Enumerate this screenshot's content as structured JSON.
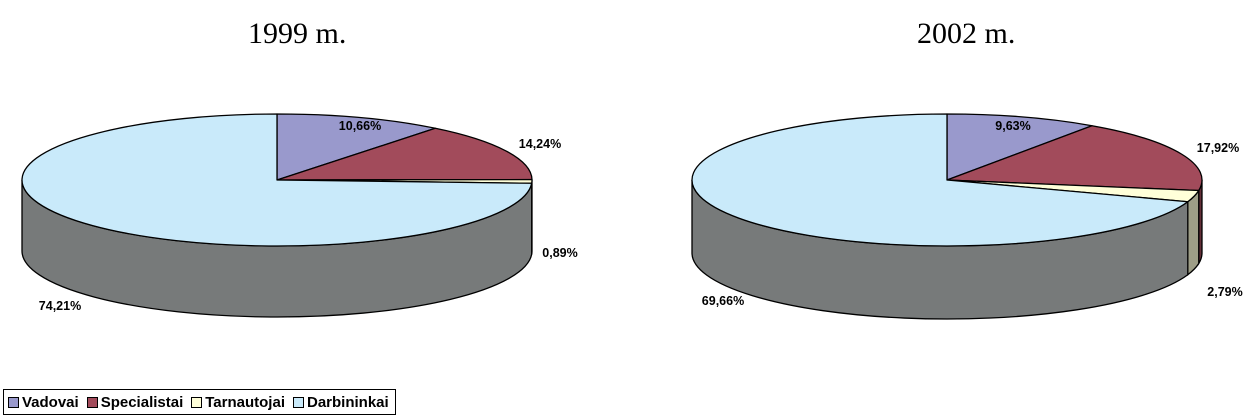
{
  "chart_data": [
    {
      "type": "pie",
      "title": "1999 m.",
      "categories": [
        "Vadovai",
        "Specialistai",
        "Tarnautojai",
        "Darbininkai"
      ],
      "values": [
        10.66,
        14.24,
        0.89,
        74.21
      ],
      "labels": [
        "10,66%",
        "14,24%",
        "0,89%",
        "74,21%"
      ]
    },
    {
      "type": "pie",
      "title": "2002 m.",
      "categories": [
        "Vadovai",
        "Specialistai",
        "Tarnautojai",
        "Darbininkai"
      ],
      "values": [
        9.63,
        17.92,
        2.79,
        69.66
      ],
      "labels": [
        "9,63%",
        "17,92%",
        "2,79%",
        "69,66%"
      ]
    }
  ],
  "legend": {
    "placement": "bottom-left",
    "items": [
      {
        "label": "Vadovai",
        "color": "#9999cc"
      },
      {
        "label": "Specialistai",
        "color": "#a24b5b"
      },
      {
        "label": "Tarnautojai",
        "color": "#ffffd9"
      },
      {
        "label": "Darbininkai",
        "color": "#c9eafa"
      }
    ]
  },
  "colors": {
    "Vadovai": "#9999cc",
    "Specialistai": "#a24b5b",
    "Tarnautojai": "#ffffd9",
    "Darbininkai": "#c9eafa",
    "side": "#777a7a"
  }
}
